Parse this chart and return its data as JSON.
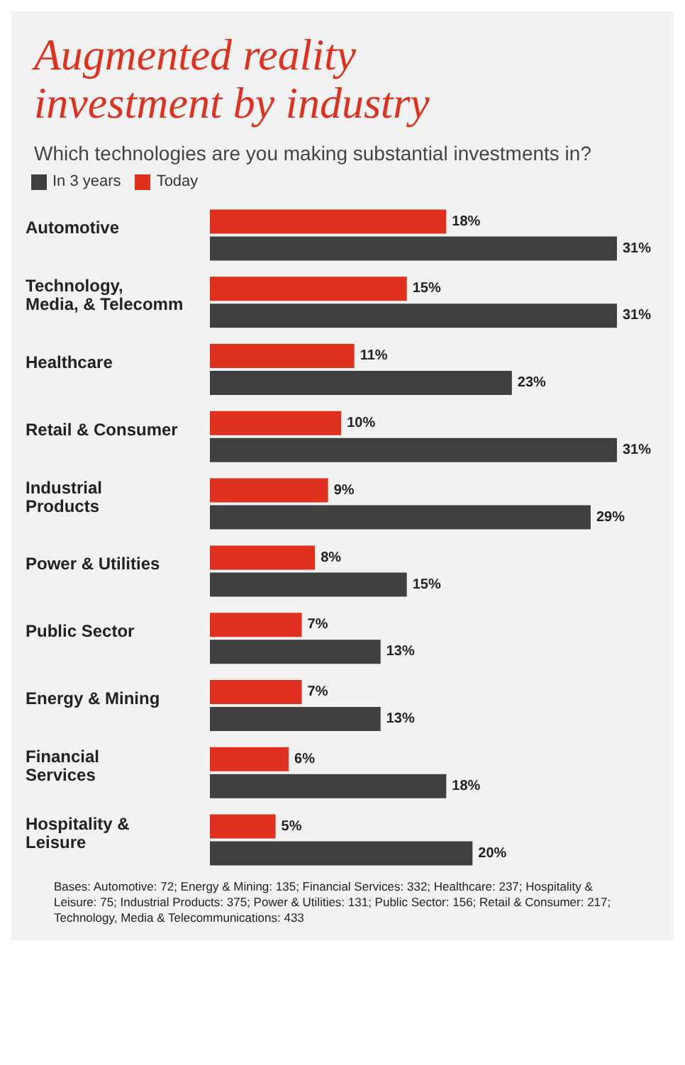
{
  "chart_data": {
    "type": "bar",
    "orientation": "horizontal",
    "title": "Augmented reality investment by industry",
    "subtitle": "Which technologies are you making substantial investments in?",
    "categories": [
      "Automotive",
      "Technology, Media, & Telecomm",
      "Healthcare",
      "Retail & Consumer",
      "Industrial Products",
      "Power & Utilities",
      "Public Sector",
      "Energy & Mining",
      "Financial Services",
      "Hospitality & Leisure"
    ],
    "series": [
      {
        "name": "Today",
        "color": "#e0301e",
        "values": [
          18,
          15,
          11,
          10,
          9,
          8,
          7,
          7,
          6,
          5
        ],
        "value_labels": [
          "18%",
          "15%",
          "11%",
          "10%",
          "9%",
          "8%",
          "7%",
          "7%",
          "6%",
          "5%"
        ]
      },
      {
        "name": "In 3 years",
        "color": "#404041",
        "values": [
          31,
          31,
          23,
          31,
          29,
          15,
          13,
          13,
          18,
          20
        ],
        "value_labels": [
          "31%",
          "31%",
          "23%",
          "31%",
          "29%",
          "15%",
          "13%",
          "13%",
          "18%",
          "20%"
        ]
      }
    ],
    "legend": "top left",
    "grid": false,
    "annotations": [
      "Bases: Automotive: 72; Energy & Mining: 135; Financial Services: 332; Healthcare: 237; Hospitality & Leisure: 75; Industrial Products: 375; Power & Utilities: 131; Public Sector: 156; Retail & Consumer: 217; Technology, Media & Telecommunications: 433"
    ]
  }
}
